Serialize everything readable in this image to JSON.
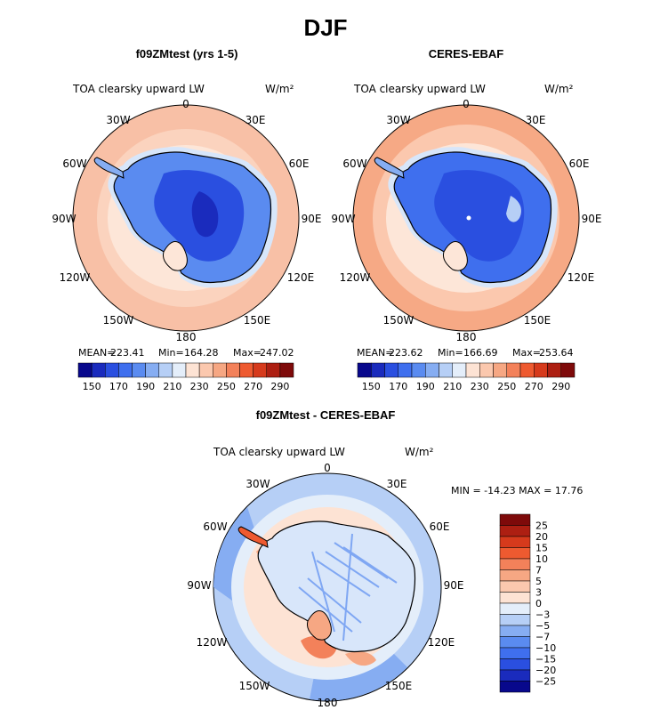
{
  "title": "DJF",
  "colors": {
    "abs_scale": [
      "#08088c",
      "#1a2bbd",
      "#2a4fe0",
      "#3f6fee",
      "#5a8bf0",
      "#86adf2",
      "#b6cff6",
      "#e4eefa",
      "#fde3d4",
      "#fbc8ae",
      "#f6a783",
      "#f3815a",
      "#ee5a30",
      "#d63a1c",
      "#ad1f12",
      "#7e0a0a"
    ],
    "diff_scale": [
      "#7e0a0a",
      "#ad1f12",
      "#d63a1c",
      "#ee5a30",
      "#f3815a",
      "#f6a783",
      "#fbc8ae",
      "#fde3d4",
      "#e4eefa",
      "#b6cff6",
      "#86adf2",
      "#5a8bf0",
      "#3f6fee",
      "#2a4fe0",
      "#1a2bbd",
      "#08088c"
    ],
    "land_outline": "#000000"
  },
  "panels": [
    {
      "id": "model",
      "title": "f09ZMtest (yrs 1-5)",
      "variable": "TOA clearsky upward LW",
      "units": "W/m²",
      "stats": {
        "mean_label": "MEAN=",
        "mean": "223.41",
        "min_label": "Min=",
        "min": "164.28",
        "max_label": "Max=",
        "max": "247.02"
      },
      "colorbar_ticks": [
        "150",
        "170",
        "190",
        "210",
        "230",
        "250",
        "270",
        "290"
      ],
      "rings": {
        "outer": "#f8c0a6",
        "mid": "#fbd3be",
        "inner": "#fde6d8",
        "ice": "#d7e6fa"
      }
    },
    {
      "id": "obs",
      "title": "CERES-EBAF",
      "variable": "TOA clearsky upward LW",
      "units": "W/m²",
      "stats": {
        "mean_label": "MEAN=",
        "mean": "223.62",
        "min_label": "Min=",
        "min": "166.69",
        "max_label": "Max=",
        "max": "253.64"
      },
      "colorbar_ticks": [
        "150",
        "170",
        "190",
        "210",
        "230",
        "250",
        "270",
        "290"
      ],
      "rings": {
        "outer": "#f6a985",
        "mid": "#fbc8ae",
        "inner": "#fde6d8",
        "ice": "#d7e6fa"
      }
    },
    {
      "id": "diff",
      "title": "f09ZMtest - CERES-EBAF",
      "variable": "TOA clearsky upward LW",
      "units": "W/m²",
      "minmax": "MIN = -14.23 MAX =  17.76",
      "colorbar_ticks": [
        "25",
        "20",
        "15",
        "10",
        "7",
        "5",
        "3",
        "0",
        "−3",
        "−5",
        "−7",
        "−10",
        "−15",
        "−20",
        "−25"
      ]
    }
  ],
  "map_labels": {
    "top": "0",
    "top_left": "30W",
    "top_right": "30E",
    "left_upper": "60W",
    "right_upper": "60E",
    "left": "90W",
    "right": "90E",
    "left_lower": "120W",
    "right_lower": "120E",
    "bottom_left": "150W",
    "bottom_right": "150E",
    "bottom": "180"
  }
}
